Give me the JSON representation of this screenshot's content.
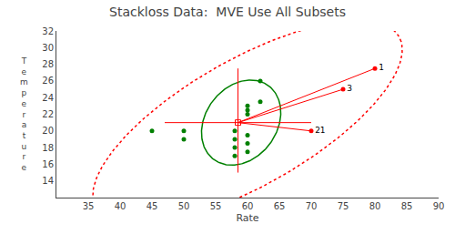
{
  "chart_data": {
    "type": "scatter",
    "title": "Stackloss Data:  MVE Use All Subsets",
    "x_label": "Rate",
    "y_label": "T\ne\nm\np\ne\nr\na\nt\nu\nr\ne",
    "xlim": [
      30.0,
      90.0
    ],
    "ylim": [
      12.0,
      32.0
    ],
    "xticks": [
      35.0,
      40.0,
      45.0,
      50.0,
      55.0,
      60.0,
      65.0,
      70.0,
      75.0,
      80.0,
      85.0,
      90.0
    ],
    "yticks": [
      14.0,
      16.0,
      18.0,
      20.0,
      22.0,
      24.0,
      26.0,
      28.0,
      30.0,
      32.0
    ],
    "grid": false,
    "points": {
      "x": [
        58.0,
        58.0,
        58.0,
        58.0,
        60.0,
        60.0,
        60.0,
        60.0,
        60.0,
        60.0,
        62.0,
        62.0,
        50.0,
        50.0,
        45.0
      ],
      "y": [
        20.0,
        19.0,
        18.0,
        17.0,
        23.0,
        22.5,
        22.0,
        19.5,
        18.5,
        17.5,
        26.0,
        23.5,
        20.0,
        19.0,
        20.0
      ],
      "color": "green",
      "marker": "circle"
    },
    "outliers": {
      "x": [
        80.0,
        75.0,
        70.0
      ],
      "y": [
        27.5,
        25.0,
        20.0
      ],
      "labels": [
        "1",
        "3",
        "21"
      ],
      "color": "red",
      "marker": "circle"
    },
    "center": {
      "x": 58.5,
      "y": 21.0,
      "color": "red",
      "marker": "square-open"
    },
    "crosshair": {
      "x": 58.5,
      "y": 21.0,
      "h_left": 47.0,
      "h_right": 70.0,
      "v_bottom": 15.0,
      "v_top": 27.5,
      "color": "red"
    },
    "inner_ellipse": {
      "cx": 59.0,
      "cy": 21.0,
      "width": 13.0,
      "height": 9.5,
      "angle": 25.0,
      "color": "green",
      "line_style": "solid"
    },
    "outer_ellipse": {
      "cx": 60.0,
      "cy": 21.0,
      "width": 52.0,
      "height": 16.0,
      "angle": 22.0,
      "color": "red",
      "line_style": "dot"
    }
  }
}
